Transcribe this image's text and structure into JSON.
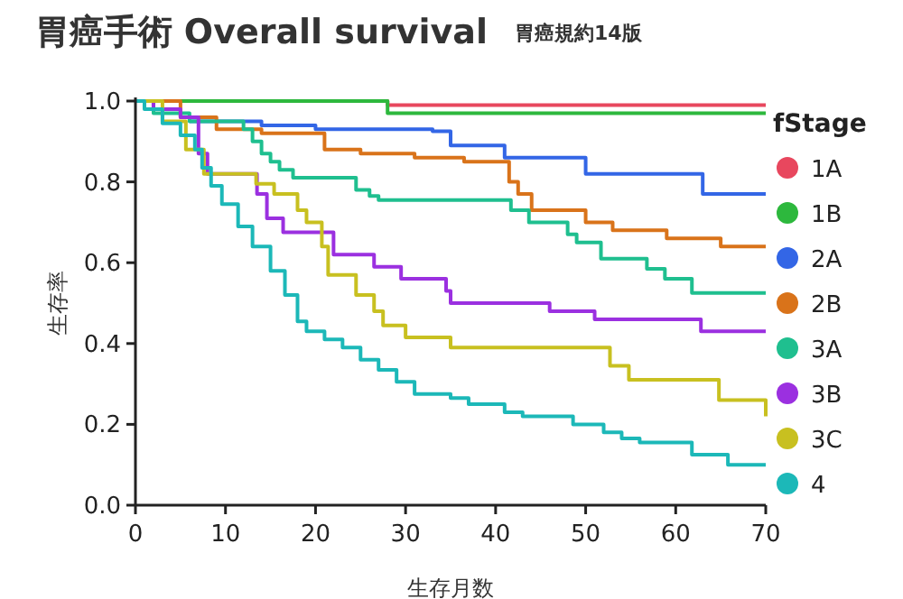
{
  "chart_data": {
    "type": "step",
    "title": "胃癌手術 Overall survival",
    "subtitle": "胃癌規約14版",
    "xlabel": "生存月数",
    "ylabel": "生存率",
    "legend_title": "fStage",
    "legend": "right",
    "grid": false,
    "xlim": [
      0,
      70
    ],
    "xticks": [
      0,
      10,
      20,
      30,
      40,
      50,
      60,
      70
    ],
    "ylim": [
      0,
      1
    ],
    "yticks": [
      {
        "value": 0,
        "label": "0.0"
      },
      {
        "value": 0.2,
        "label": "0.2"
      },
      {
        "value": 0.4,
        "label": "0.4"
      },
      {
        "value": 0.6,
        "label": "0.6"
      },
      {
        "value": 0.8,
        "label": "0.8"
      },
      {
        "value": 1,
        "label": "1.0"
      }
    ],
    "series": [
      {
        "name": "1A",
        "color": "#e8475e",
        "x": [
          0,
          28,
          70
        ],
        "values": [
          1.0,
          0.99,
          0.99
        ]
      },
      {
        "name": "1B",
        "color": "#2db83d",
        "x": [
          0,
          28,
          70
        ],
        "values": [
          1.0,
          0.97,
          0.97
        ]
      },
      {
        "name": "2A",
        "color": "#3366e6",
        "x": [
          6,
          14,
          20,
          33,
          35,
          41,
          50,
          63,
          70
        ],
        "values": [
          0.95,
          0.94,
          0.93,
          0.925,
          0.89,
          0.86,
          0.82,
          0.77,
          0.77
        ]
      },
      {
        "name": "2B",
        "color": "#d9731a",
        "x": [
          0,
          5,
          9,
          14,
          21,
          25,
          31,
          36.5,
          41.5,
          42.5,
          44,
          50,
          53,
          59,
          65,
          70
        ],
        "values": [
          1.0,
          0.96,
          0.93,
          0.92,
          0.88,
          0.87,
          0.86,
          0.85,
          0.8,
          0.77,
          0.73,
          0.7,
          0.68,
          0.66,
          0.64,
          0.64
        ]
      },
      {
        "name": "3A",
        "color": "#1fbf8f",
        "x": [
          0,
          2,
          6,
          12,
          13,
          14,
          15,
          16,
          17.5,
          24.5,
          26,
          27,
          41.7,
          43.7,
          48,
          49,
          51.7,
          56.8,
          58.8,
          61.8,
          70
        ],
        "values": [
          1.0,
          0.97,
          0.95,
          0.93,
          0.9,
          0.87,
          0.85,
          0.83,
          0.81,
          0.78,
          0.765,
          0.755,
          0.73,
          0.7,
          0.67,
          0.65,
          0.61,
          0.585,
          0.56,
          0.525,
          0.525
        ]
      },
      {
        "name": "3B",
        "color": "#9b30e0",
        "x": [
          0,
          2,
          5,
          7,
          8,
          13.5,
          14.6,
          16.4,
          22,
          26.5,
          29.5,
          34.5,
          35,
          46,
          51,
          62.8,
          70
        ],
        "values": [
          1.0,
          0.98,
          0.96,
          0.87,
          0.82,
          0.77,
          0.71,
          0.675,
          0.62,
          0.59,
          0.56,
          0.53,
          0.5,
          0.48,
          0.46,
          0.43,
          0.43
        ]
      },
      {
        "name": "3C",
        "color": "#c8c020",
        "x": [
          0,
          3,
          5.6,
          7.6,
          13.4,
          15.4,
          18,
          19,
          20.7,
          21.4,
          24.5,
          26.5,
          27.5,
          30,
          35,
          52.7,
          54.8,
          64.8,
          70
        ],
        "values": [
          1.0,
          0.95,
          0.88,
          0.82,
          0.795,
          0.77,
          0.73,
          0.7,
          0.64,
          0.57,
          0.52,
          0.48,
          0.445,
          0.415,
          0.39,
          0.345,
          0.31,
          0.26,
          0.22
        ]
      },
      {
        "name": "4",
        "color": "#1cb8b8",
        "x": [
          0,
          1,
          3,
          5,
          6.6,
          7.4,
          8.4,
          9.6,
          11.4,
          13,
          15,
          16.6,
          18,
          19,
          21,
          23,
          25,
          27,
          29,
          31,
          35,
          37,
          41,
          43,
          48.6,
          52,
          54,
          56,
          61.8,
          65.8,
          70
        ],
        "values": [
          1.0,
          0.98,
          0.945,
          0.915,
          0.88,
          0.835,
          0.79,
          0.745,
          0.69,
          0.64,
          0.58,
          0.52,
          0.455,
          0.43,
          0.41,
          0.39,
          0.36,
          0.335,
          0.305,
          0.275,
          0.265,
          0.25,
          0.23,
          0.22,
          0.2,
          0.18,
          0.165,
          0.155,
          0.125,
          0.1,
          0.1
        ]
      }
    ]
  }
}
